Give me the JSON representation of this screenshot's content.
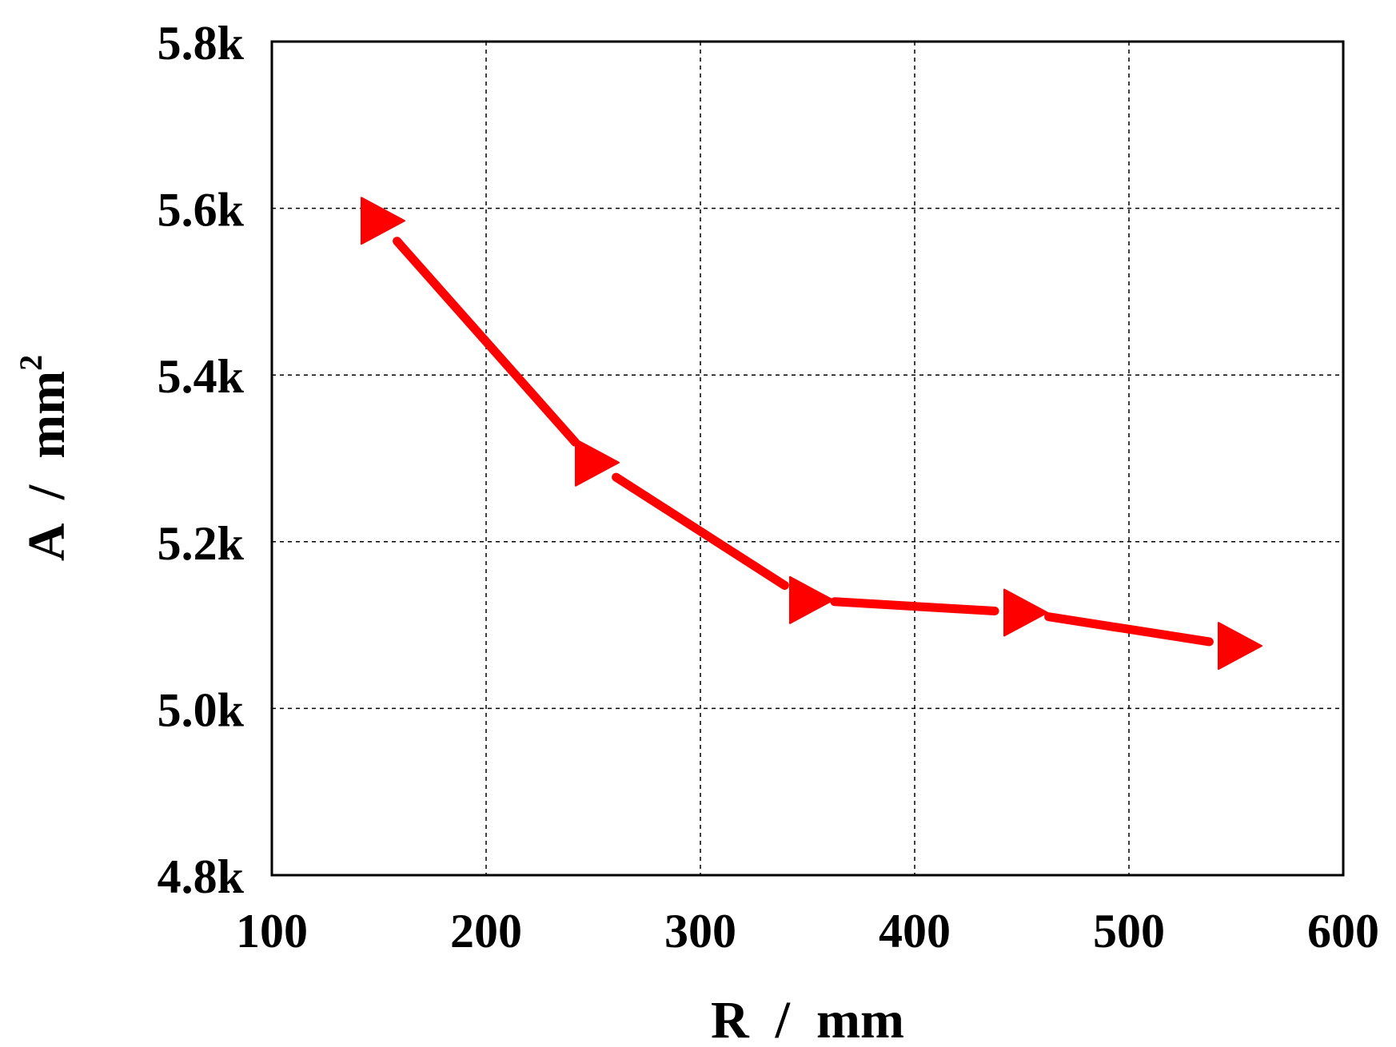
{
  "chart_data": {
    "type": "line",
    "title": "",
    "xlabel": "R  /  mm",
    "ylabel_main": "A  /  mm",
    "ylabel_sup": "2",
    "xlim": [
      100,
      600
    ],
    "ylim": [
      4800,
      5800
    ],
    "x_ticks": [
      100,
      200,
      300,
      400,
      500,
      600
    ],
    "x_tick_labels": [
      "100",
      "200",
      "300",
      "400",
      "500",
      "600"
    ],
    "y_ticks": [
      4800,
      5000,
      5200,
      5400,
      5600,
      5800
    ],
    "y_tick_labels": [
      "4.8k",
      "5.0k",
      "5.2k",
      "5.4k",
      "5.6k",
      "5.8k"
    ],
    "grid": true,
    "grid_style": "dashed",
    "legend": "none",
    "series": [
      {
        "color": "#ff0000",
        "marker": "right-triangle",
        "x": [
          150,
          250,
          350,
          450,
          550
        ],
        "y": [
          5585,
          5295,
          5130,
          5115,
          5075
        ]
      }
    ]
  }
}
